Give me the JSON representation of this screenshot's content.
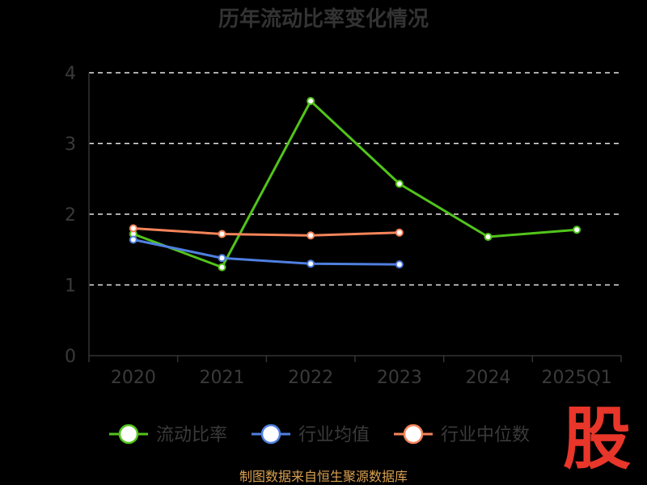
{
  "chart_data": {
    "type": "line",
    "title": "历年流动比率变化情况",
    "categories": [
      "2020",
      "2021",
      "2022",
      "2023",
      "2024",
      "2025Q1"
    ],
    "ylim": [
      0,
      4
    ],
    "yticks": [
      "0",
      "1",
      "2",
      "3",
      "4"
    ],
    "grid": "horizontal-dashed",
    "legend_position": "bottom",
    "series": [
      {
        "name": "流动比率",
        "color": "#52c41a",
        "values": [
          1.72,
          1.25,
          3.6,
          2.43,
          1.68,
          1.78
        ]
      },
      {
        "name": "行业均值",
        "color": "#4f7fe0",
        "values": [
          1.64,
          1.38,
          1.3,
          1.29,
          null,
          null
        ]
      },
      {
        "name": "行业中位数",
        "color": "#f5845a",
        "values": [
          1.8,
          1.72,
          1.7,
          1.74,
          null,
          null
        ]
      }
    ]
  },
  "source_text": "制图数据来自恒生聚源数据库",
  "logo_text": "股"
}
